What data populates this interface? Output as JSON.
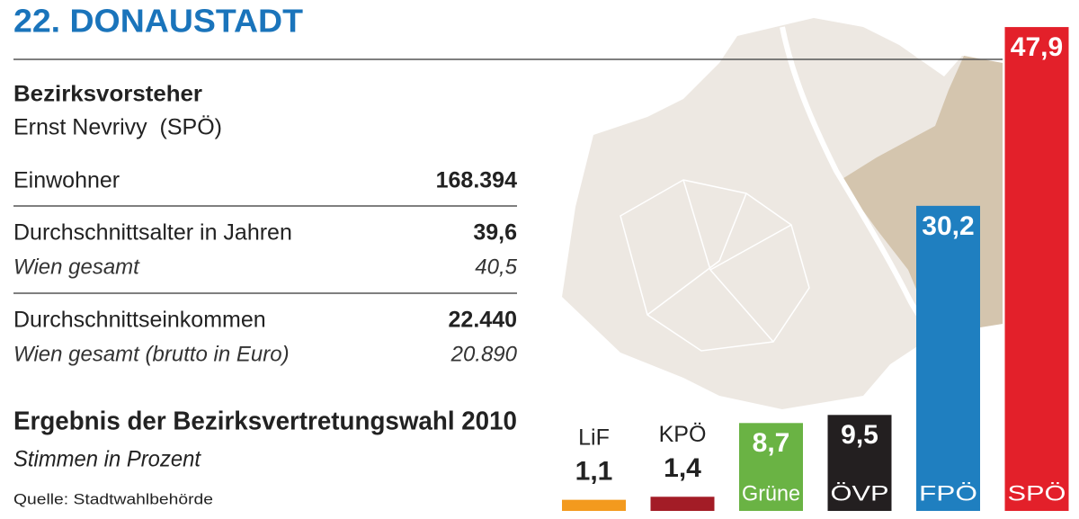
{
  "header": {
    "title": "22. DONAUSTADT"
  },
  "mayor": {
    "label": "Bezirksvorsteher",
    "name": "Ernst Nevrivy  (SPÖ)"
  },
  "stats": [
    {
      "label": "Einwohner",
      "value": "168.394"
    },
    {
      "label": "Durchschnittsalter in Jahren",
      "value": "39,6",
      "sub_label": "Wien gesamt",
      "sub_value": "40,5"
    },
    {
      "label": "Durchschnittseinkommen",
      "value": "22.440",
      "sub_label": "Wien gesamt (brutto in Euro)",
      "sub_value": "20.890"
    }
  ],
  "election": {
    "title": "Ergebnis der Bezirksvertretungswahl 2010",
    "subtitle": "Stimmen in Prozent"
  },
  "source": "Quelle: Stadtwahlbehörde",
  "chart_data": {
    "type": "bar",
    "categories": [
      "LiF",
      "KPÖ",
      "Grüne",
      "ÖVP",
      "FPÖ",
      "SPÖ"
    ],
    "values": [
      1.1,
      1.4,
      8.7,
      9.5,
      30.2,
      47.9
    ],
    "value_labels": [
      "1,1",
      "1,4",
      "8,7",
      "9,5",
      "30,2",
      "47,9"
    ],
    "colors": [
      "#f39a1e",
      "#a31c26",
      "#6ab344",
      "#231f20",
      "#1f7fc0",
      "#e3202a"
    ]
  }
}
